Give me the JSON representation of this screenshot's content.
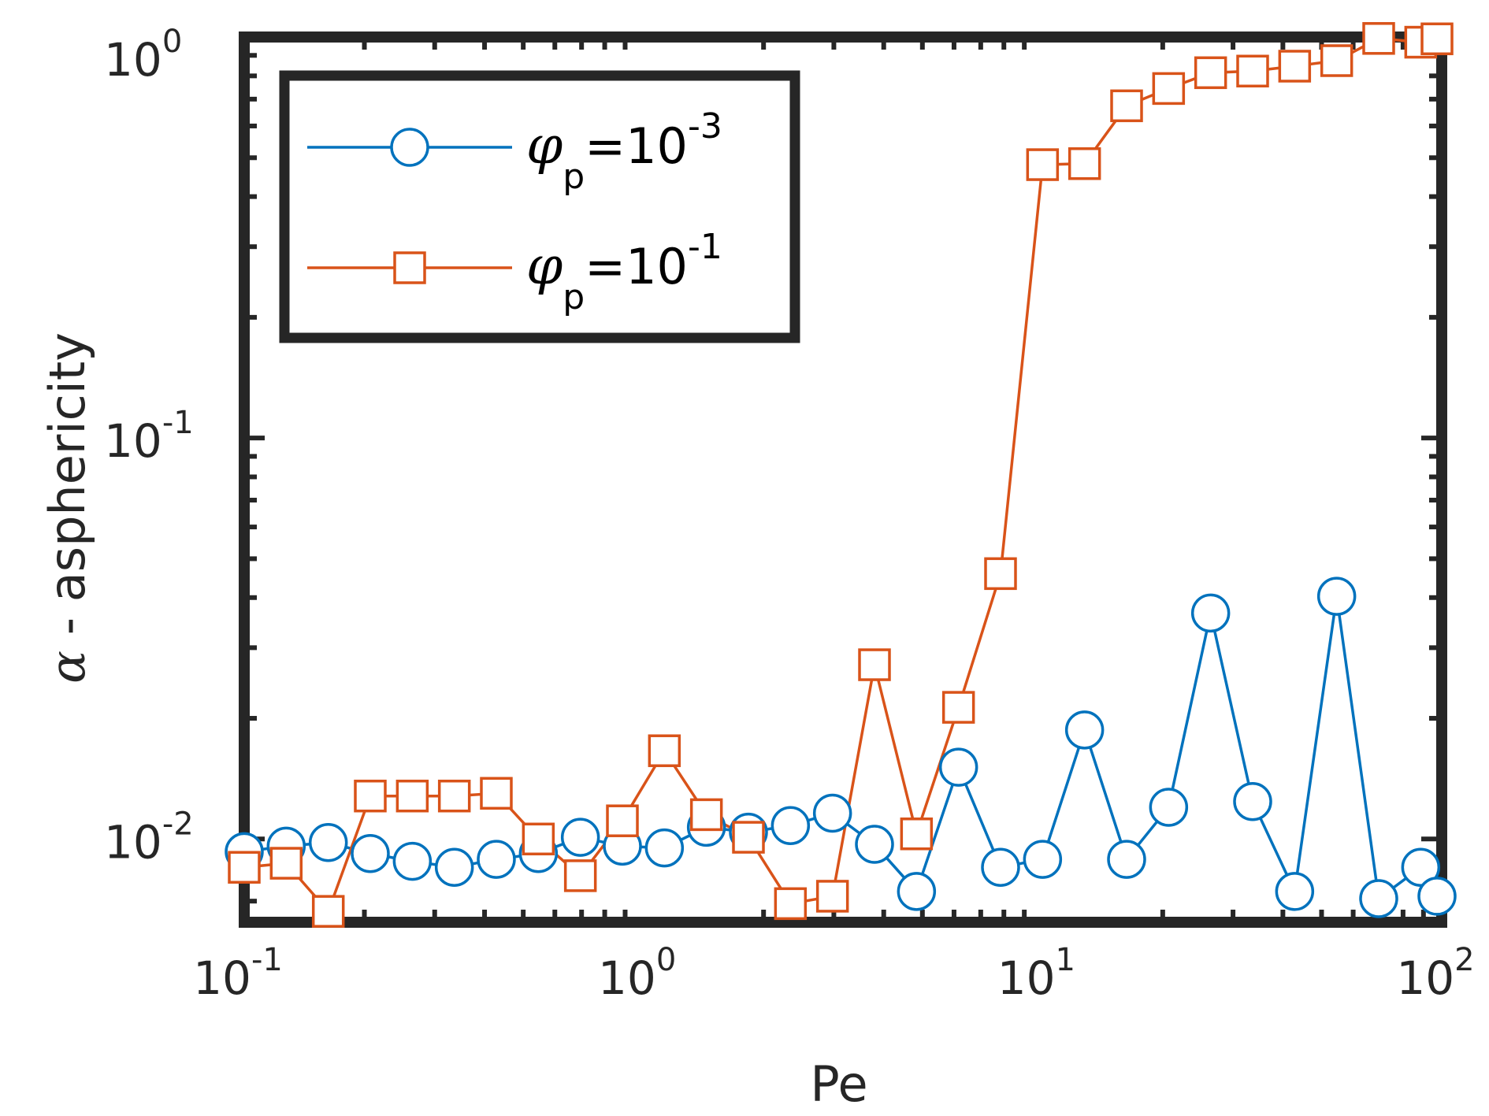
{
  "chart_data": {
    "type": "line",
    "xscale": "log",
    "yscale": "log",
    "xlabel": "Pe",
    "ylabel_symbol": "α",
    "ylabel_text": " - asphericity",
    "xlim": [
      0.1,
      100
    ],
    "ylim": [
      0.0062,
      1.0
    ],
    "x_ticks": [
      {
        "base": "10",
        "exp": "-1"
      },
      {
        "base": "10",
        "exp": "0"
      },
      {
        "base": "10",
        "exp": "1"
      },
      {
        "base": "10",
        "exp": "2"
      }
    ],
    "y_ticks": [
      {
        "base": "10",
        "exp": "-2"
      },
      {
        "base": "10",
        "exp": "-1"
      },
      {
        "base": "10",
        "exp": "0"
      }
    ],
    "legend_position": "top-left",
    "series": [
      {
        "name": "φp=10^-3",
        "phi": "φ",
        "sub": "p",
        "eq": "=10",
        "sup": "-3",
        "color": "#0072BD",
        "marker": "circle",
        "x": [
          0.1,
          0.1274,
          0.1624,
          0.2069,
          0.2637,
          0.336,
          0.4281,
          0.5456,
          0.6952,
          0.8859,
          1.1288,
          1.4384,
          1.833,
          2.3357,
          2.9764,
          3.7927,
          4.8329,
          6.1585,
          7.8476,
          10.0,
          12.743,
          16.238,
          20.691,
          26.367,
          33.598,
          42.813,
          54.556,
          69.519,
          88.587,
          112.88
        ],
        "values": [
          0.0093,
          0.0096,
          0.0098,
          0.0092,
          0.0088,
          0.0085,
          0.0089,
          0.0092,
          0.0101,
          0.0096,
          0.0095,
          0.0107,
          0.0104,
          0.0108,
          0.0116,
          0.0097,
          0.0074,
          0.0151,
          0.0085,
          0.0089,
          0.0187,
          0.0089,
          0.012,
          0.0366,
          0.0124,
          0.0074,
          0.0403,
          0.0071,
          0.0085,
          0.0072
        ]
      },
      {
        "name": "φp=10^-1",
        "phi": "φ",
        "sub": "p",
        "eq": "=10",
        "sup": "-1",
        "color": "#D95319",
        "marker": "square",
        "x": [
          0.1,
          0.1274,
          0.1624,
          0.2069,
          0.2637,
          0.336,
          0.4281,
          0.5456,
          0.6952,
          0.8859,
          1.1288,
          1.4384,
          1.833,
          2.3357,
          2.9764,
          3.7927,
          4.8329,
          6.1585,
          7.8476,
          10.0,
          12.743,
          16.238,
          20.691,
          26.367,
          33.598,
          42.813,
          54.556,
          69.519,
          88.587,
          112.88
        ],
        "values": [
          0.0085,
          0.0087,
          0.0066,
          0.0128,
          0.0128,
          0.0128,
          0.013,
          0.01,
          0.0081,
          0.0111,
          0.0166,
          0.0115,
          0.0101,
          0.0069,
          0.0072,
          0.0272,
          0.0103,
          0.0213,
          0.0459,
          0.4805,
          0.4833,
          0.6737,
          0.744,
          0.8147,
          0.8223,
          0.8459,
          0.8731,
          0.9919,
          0.9707,
          0.9896
        ]
      }
    ]
  }
}
